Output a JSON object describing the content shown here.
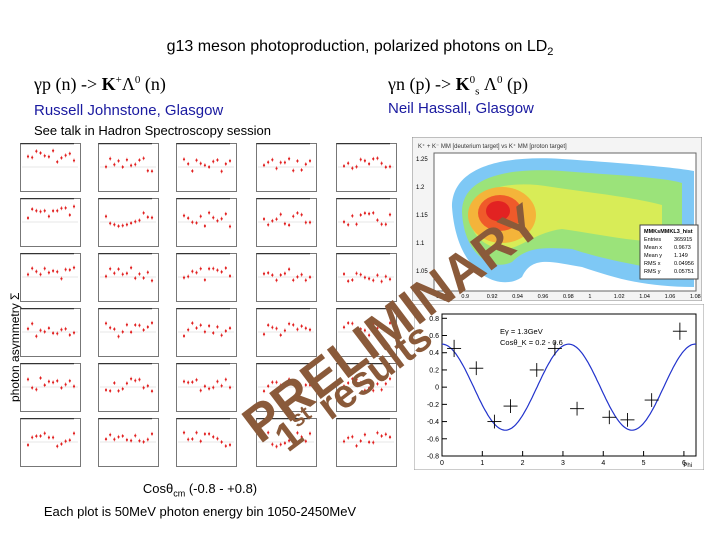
{
  "slide": {
    "title": "g13 meson photoproduction, polarized photons on LD",
    "title_sub": "2",
    "left": {
      "reaction": {
        "gamma": "γ",
        "text": "p (n) -> ",
        "kaon": "K",
        "kaon_sup": "+",
        "lambda": "Λ",
        "lambda_sup": "0",
        "tail": " (n)"
      },
      "author": "Russell Johnstone, Glasgow",
      "note": "See talk in Hadron Spectroscopy session"
    },
    "right": {
      "reaction": {
        "gamma": "γ",
        "text": "n (p) -> ",
        "kaon": "K",
        "kaon_sup": "0",
        "kaon_sub": "s",
        "lambda": "Λ",
        "lambda_sup": "0",
        "tail": " (p)"
      },
      "author": "Neil Hassall, Glasgow"
    },
    "y_axis_label": "photon asymmetry Σ",
    "caption": {
      "cos_prefix": "Cosθ",
      "cos_sub": "cm",
      "cos_range": " (-0.8 - +0.8)",
      "line2": "Each plot is 50MeV photon energy bin 1050-2450MeV"
    },
    "stamp": {
      "word1": "PRELIMINARY",
      "ordinal_num": "1",
      "ordinal_sup": "st",
      "word2": "results"
    }
  },
  "histogram_2d": {
    "header": "K⁺ + K⁻ MM [deuterium target] vs K⁺ MM [proton target]",
    "stats": {
      "title": "MMKsMMKL3_hist",
      "rows": [
        {
          "label": "Entries",
          "value": "365915"
        },
        {
          "label": "Mean x",
          "value": "0.9673"
        },
        {
          "label": "Mean y",
          "value": "1.149"
        },
        {
          "label": "RMS x",
          "value": "0.04956"
        },
        {
          "label": "RMS y",
          "value": "0.05751"
        }
      ]
    },
    "x_ticks": [
      "0.88",
      "0.9",
      "0.92",
      "0.94",
      "0.96",
      "0.98",
      "1",
      "1.02",
      "1.04",
      "1.06",
      "1.08"
    ],
    "y_ticks": [
      "1.25",
      "1.2",
      "1.15",
      "1.1",
      "1.05"
    ]
  },
  "chart_data": {
    "type": "scatter",
    "legend": [
      "Eγ = 1.3GeV",
      "Cosθ_K = 0.2 - 0.6"
    ],
    "legend_lines": [
      "Eγ = 1.3GeV",
      "Cosθ_K = 0.2 - 0.6"
    ],
    "xlabel": "Phi",
    "xlim": [
      0,
      6.3
    ],
    "ylim": [
      -0.8,
      0.85
    ],
    "x_ticks": [
      "0",
      "1",
      "2",
      "3",
      "4",
      "5",
      "6"
    ],
    "y_ticks": [
      "0.8",
      "0.6",
      "0.4",
      "0.2",
      "0",
      "-0.2",
      "-0.4",
      "-0.6",
      "-0.8"
    ],
    "points": [
      {
        "x": 0.3,
        "y": 0.45,
        "err": 0.1
      },
      {
        "x": 0.85,
        "y": 0.22,
        "err": 0.08
      },
      {
        "x": 1.3,
        "y": -0.4,
        "err": 0.08
      },
      {
        "x": 1.7,
        "y": -0.22,
        "err": 0.08
      },
      {
        "x": 2.35,
        "y": 0.2,
        "err": 0.08
      },
      {
        "x": 2.8,
        "y": 0.45,
        "err": 0.08
      },
      {
        "x": 3.35,
        "y": -0.25,
        "err": 0.08
      },
      {
        "x": 4.15,
        "y": -0.35,
        "err": 0.08
      },
      {
        "x": 4.6,
        "y": -0.38,
        "err": 0.08
      },
      {
        "x": 5.2,
        "y": -0.15,
        "err": 0.08
      },
      {
        "x": 5.9,
        "y": 0.65,
        "err": 0.1
      }
    ],
    "fit": {
      "amplitude": 0.5,
      "frequency": 2
    }
  }
}
